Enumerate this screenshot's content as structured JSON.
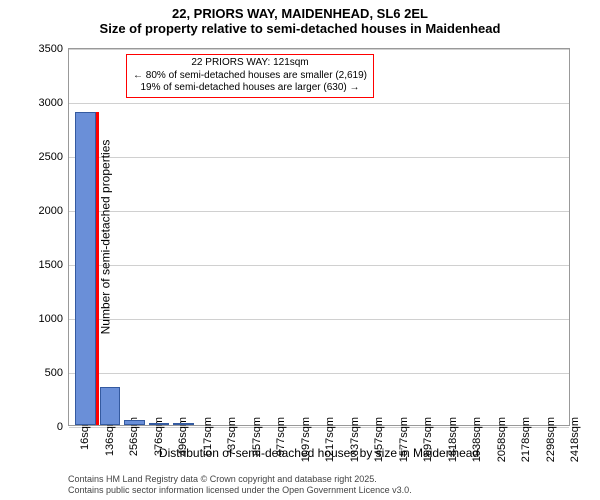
{
  "title_line1": "22, PRIORS WAY, MAIDENHEAD, SL6 2EL",
  "title_line2": "Size of property relative to semi-detached houses in Maidenhead",
  "ylabel": "Number of semi-detached properties",
  "xlabel": "Distribution of semi-detached houses by size in Maidenhead",
  "chart": {
    "type": "bar",
    "ylim": [
      0,
      3500
    ],
    "yticks": [
      0,
      500,
      1000,
      1500,
      2000,
      2500,
      3000,
      3500
    ],
    "xticks": [
      "16sqm",
      "136sqm",
      "256sqm",
      "376sqm",
      "496sqm",
      "617sqm",
      "737sqm",
      "857sqm",
      "977sqm",
      "1097sqm",
      "1217sqm",
      "1337sqm",
      "1457sqm",
      "1577sqm",
      "1697sqm",
      "1818sqm",
      "1938sqm",
      "2058sqm",
      "2178sqm",
      "2298sqm",
      "2418sqm"
    ],
    "bar_color": "#6a8fd8",
    "bar_border_color": "#345aa0",
    "grid_color": "#d0d0d0",
    "background_color": "#ffffff",
    "highlight_color": "#ff0000",
    "highlight_x": 121,
    "x_range": [
      16,
      2418
    ],
    "values": [
      2900,
      350,
      50,
      10,
      5,
      0,
      0,
      0,
      0,
      0,
      0,
      0,
      0,
      0,
      0,
      0,
      0,
      0,
      0,
      0,
      0
    ]
  },
  "annotation": {
    "line1": "22 PRIORS WAY: 121sqm",
    "line2": "← 80% of semi-detached houses are smaller (2,619)",
    "line3": "19% of semi-detached houses are larger (630) →"
  },
  "footer_line1": "Contains HM Land Registry data © Crown copyright and database right 2025.",
  "footer_line2": "Contains public sector information licensed under the Open Government Licence v3.0."
}
